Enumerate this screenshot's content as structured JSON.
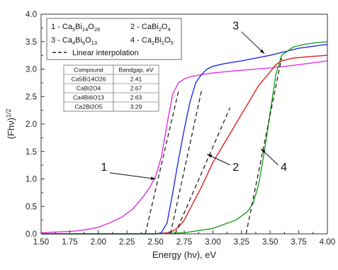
{
  "chart_data": {
    "type": "line",
    "xlabel": "Energy (hν), eV",
    "ylabel": "(Fhν)",
    "ylabel_sup": "1/2",
    "xlim": [
      1.5,
      4.0
    ],
    "ylim": [
      0.0,
      4.0
    ],
    "x_ticks": [
      "1.50",
      "1.75",
      "2.00",
      "2.25",
      "2.50",
      "2.75",
      "3.00",
      "3.25",
      "3.50",
      "3.75",
      "4.00"
    ],
    "y_ticks": [
      "0.0",
      "0.5",
      "1.0",
      "1.5",
      "2.0",
      "2.5",
      "3.0",
      "3.5",
      "4.0"
    ],
    "grid": false,
    "legend_position": "top-left",
    "legend": [
      {
        "label_parts": [
          [
            "1 - Ca",
            "n"
          ],
          [
            "5",
            "s"
          ],
          [
            "Bi",
            "n"
          ],
          [
            "14",
            "s"
          ],
          [
            "O",
            "n"
          ],
          [
            "26",
            "s"
          ]
        ],
        "color": "#e030e0"
      },
      {
        "label_parts": [
          [
            "2 - CaBi",
            "n"
          ],
          [
            "2",
            "s"
          ],
          [
            "O",
            "n"
          ],
          [
            "4",
            "s"
          ]
        ],
        "color": "#e02020"
      },
      {
        "label_parts": [
          [
            "3 - Ca",
            "n"
          ],
          [
            "4",
            "s"
          ],
          [
            "Bi",
            "n"
          ],
          [
            "6",
            "s"
          ],
          [
            "O",
            "n"
          ],
          [
            "13",
            "s"
          ]
        ],
        "color": "#2030e0"
      },
      {
        "label_parts": [
          [
            "4 - Ca",
            "n"
          ],
          [
            "2",
            "s"
          ],
          [
            "Bi",
            "n"
          ],
          [
            "2",
            "s"
          ],
          [
            "O",
            "n"
          ],
          [
            "5",
            "s"
          ]
        ],
        "color": "#20a020"
      },
      {
        "label_parts": [
          [
            "Linear interpolation",
            "n"
          ]
        ],
        "color": "#222222",
        "dashed": true
      }
    ],
    "table": {
      "headers": [
        "Compound",
        "Bandgap, eV"
      ],
      "rows": [
        [
          "Ca5Bi14O26",
          "2.41"
        ],
        [
          "CaBi2O4",
          "2.67"
        ],
        [
          "Ca4Bi6O13",
          "2.63"
        ],
        [
          "Ca2Bi2O5",
          "3.29"
        ]
      ]
    },
    "series": [
      {
        "id": "1",
        "color": "#e030e0",
        "x": [
          1.5,
          1.6,
          1.7,
          1.8,
          1.9,
          2.0,
          2.1,
          2.2,
          2.3,
          2.4,
          2.45,
          2.5,
          2.55,
          2.6,
          2.65,
          2.7,
          2.75,
          2.8,
          2.9,
          3.0,
          3.2,
          3.5,
          3.75,
          4.0
        ],
        "y": [
          0.02,
          0.03,
          0.04,
          0.05,
          0.08,
          0.12,
          0.2,
          0.3,
          0.45,
          0.7,
          0.85,
          1.05,
          1.4,
          2.0,
          2.55,
          2.75,
          2.82,
          2.86,
          2.9,
          2.93,
          2.97,
          3.02,
          3.08,
          3.15
        ]
      },
      {
        "id": "2",
        "color": "#e02020",
        "x": [
          1.5,
          2.0,
          2.5,
          2.6,
          2.65,
          2.7,
          2.75,
          2.8,
          2.9,
          3.0,
          3.1,
          3.2,
          3.3,
          3.4,
          3.5,
          3.55,
          3.6,
          3.7,
          3.8,
          4.0
        ],
        "y": [
          0.0,
          0.0,
          0.0,
          0.02,
          0.05,
          0.12,
          0.25,
          0.45,
          0.85,
          1.3,
          1.65,
          2.0,
          2.35,
          2.7,
          2.95,
          3.08,
          3.15,
          3.2,
          3.22,
          3.25
        ]
      },
      {
        "id": "3",
        "color": "#2030e0",
        "x": [
          1.5,
          2.0,
          2.5,
          2.55,
          2.6,
          2.65,
          2.7,
          2.75,
          2.8,
          2.85,
          2.9,
          2.95,
          3.0,
          3.1,
          3.25,
          3.5,
          3.75,
          4.0
        ],
        "y": [
          0.0,
          0.0,
          0.0,
          0.02,
          0.2,
          0.75,
          1.35,
          1.9,
          2.4,
          2.75,
          2.9,
          3.0,
          3.05,
          3.1,
          3.15,
          3.25,
          3.38,
          3.45
        ]
      },
      {
        "id": "4",
        "color": "#20a020",
        "x": [
          1.5,
          2.5,
          2.75,
          3.0,
          3.2,
          3.3,
          3.35,
          3.4,
          3.45,
          3.5,
          3.55,
          3.6,
          3.7,
          3.8,
          3.9,
          4.0
        ],
        "y": [
          0.0,
          0.0,
          0.02,
          0.1,
          0.25,
          0.4,
          0.55,
          0.9,
          1.5,
          2.2,
          2.9,
          3.25,
          3.4,
          3.45,
          3.48,
          3.5
        ]
      }
    ],
    "interpolation_lines": [
      {
        "x": [
          2.41,
          2.7
        ],
        "y": [
          0.0,
          2.6
        ]
      },
      {
        "x": [
          2.63,
          2.9
        ],
        "y": [
          0.0,
          2.6
        ]
      },
      {
        "x": [
          2.67,
          3.15
        ],
        "y": [
          0.0,
          2.3
        ]
      },
      {
        "x": [
          3.29,
          3.6
        ],
        "y": [
          0.0,
          3.2
        ]
      }
    ],
    "annotations": [
      {
        "label": "1",
        "text_at": [
          2.05,
          1.15
        ],
        "arrow_to": [
          2.5,
          1.0
        ]
      },
      {
        "label": "2",
        "text_at": [
          3.2,
          1.15
        ],
        "arrow_to": [
          2.95,
          1.45
        ]
      },
      {
        "label": "3",
        "text_at": [
          3.2,
          3.72
        ],
        "arrow_to": [
          3.45,
          3.28
        ]
      },
      {
        "label": "4",
        "text_at": [
          3.62,
          1.15
        ],
        "arrow_to": [
          3.42,
          1.55
        ]
      }
    ]
  }
}
